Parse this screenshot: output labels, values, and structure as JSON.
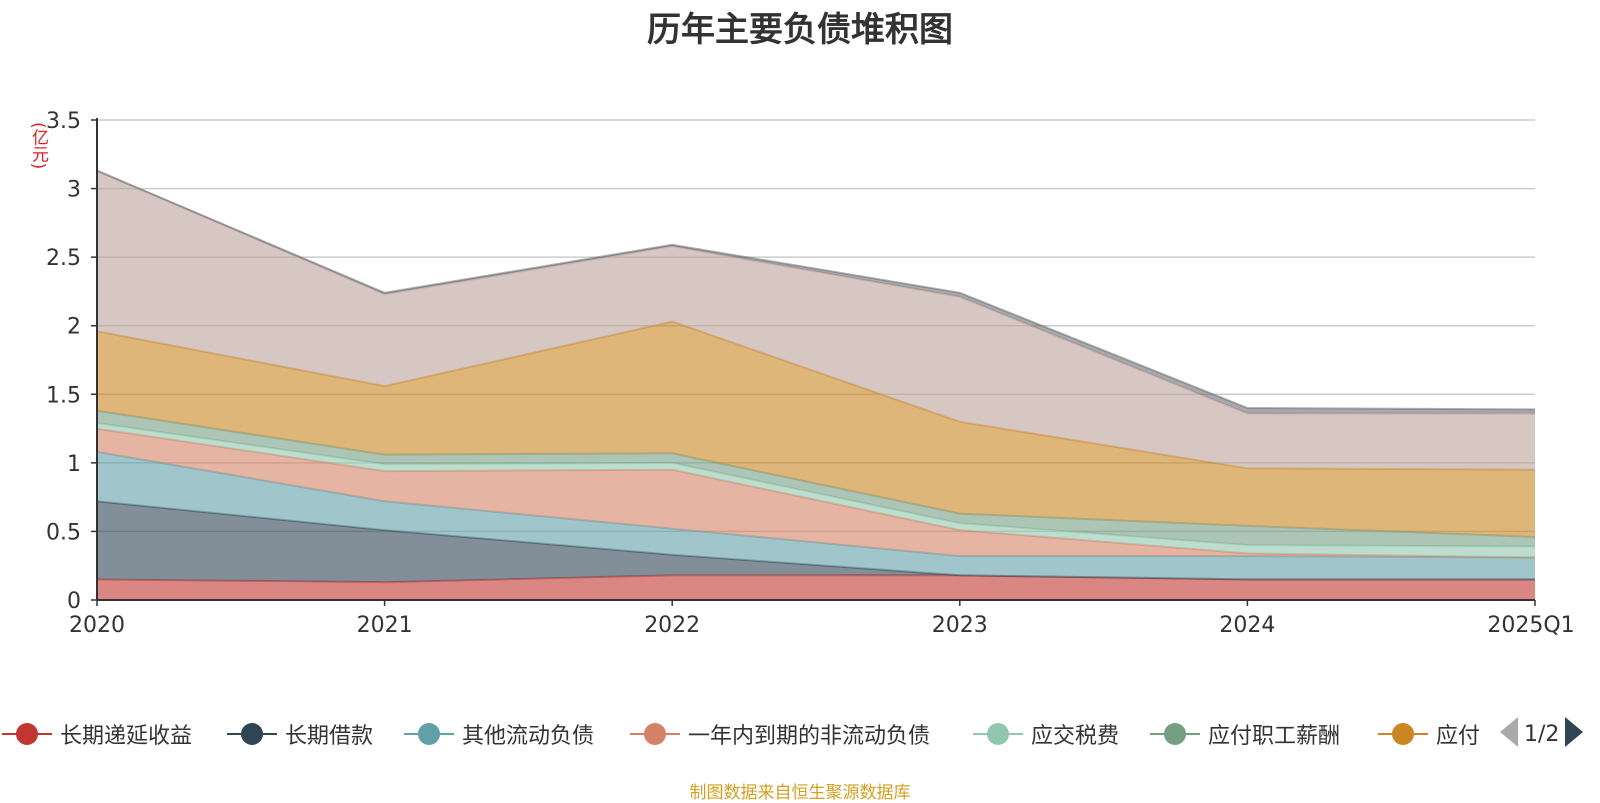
{
  "chart_data": {
    "type": "area",
    "title": "历年主要负债堆积图",
    "unit_label": "(亿元)",
    "categories": [
      "2020",
      "2021",
      "2022",
      "2023",
      "2024",
      "2025Q1"
    ],
    "ylim": [
      0,
      3.5
    ],
    "yticks": [
      "0",
      "0.5",
      "1",
      "1.5",
      "2",
      "2.5",
      "3",
      "3.5"
    ],
    "stacked": true,
    "grid": true,
    "series": [
      {
        "name": "长期递延收益",
        "color": "#c23531",
        "values": [
          0.15,
          0.13,
          0.18,
          0.18,
          0.15,
          0.15
        ]
      },
      {
        "name": "长期借款",
        "color": "#2f4554",
        "values": [
          0.57,
          0.38,
          0.15,
          0.0,
          0.0,
          0.0
        ]
      },
      {
        "name": "其他流动负债",
        "color": "#61a0a8",
        "values": [
          0.36,
          0.21,
          0.19,
          0.14,
          0.17,
          0.16
        ]
      },
      {
        "name": "一年内到期的非流动负债",
        "color": "#d48265",
        "values": [
          0.17,
          0.22,
          0.43,
          0.19,
          0.02,
          0.0
        ]
      },
      {
        "name": "应交税费",
        "color": "#91c7ae",
        "values": [
          0.04,
          0.05,
          0.05,
          0.05,
          0.06,
          0.08
        ]
      },
      {
        "name": "应付职工薪酬",
        "color": "#749f83",
        "values": [
          0.09,
          0.07,
          0.07,
          0.07,
          0.14,
          0.07
        ]
      },
      {
        "name": "应付",
        "color": "#ca8622",
        "values": [
          0.58,
          0.5,
          0.96,
          0.67,
          0.42,
          0.49
        ]
      },
      {
        "name": "",
        "color": "#bda29a",
        "values": [
          1.17,
          0.67,
          0.55,
          0.91,
          0.4,
          0.41
        ]
      },
      {
        "name": "",
        "color": "#6e7074",
        "values": [
          0.0,
          0.01,
          0.01,
          0.03,
          0.04,
          0.03
        ]
      }
    ],
    "legend_position": "bottom",
    "legend_page": "1/2"
  },
  "source_note": "制图数据来自恒生聚源数据库"
}
